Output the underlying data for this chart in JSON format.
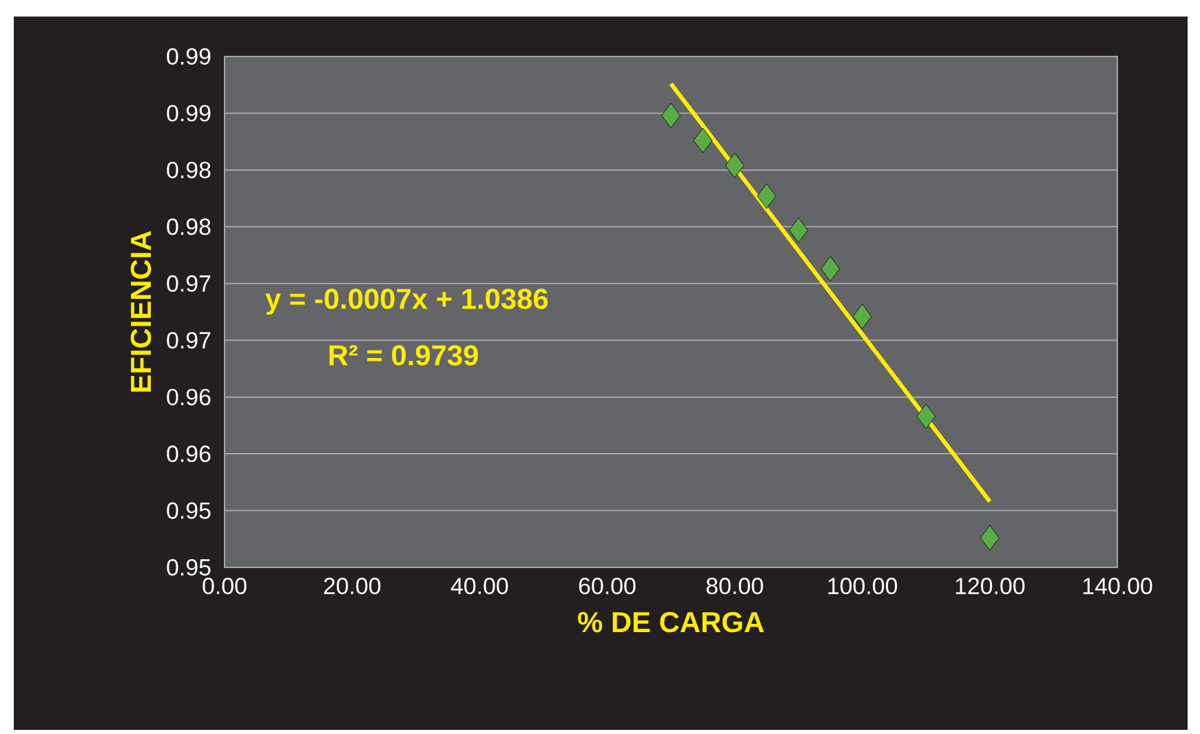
{
  "chart_data": {
    "type": "scatter",
    "xlabel": "% DE CARGA",
    "ylabel": "EFICIENCIA",
    "xlim": [
      0,
      140
    ],
    "ylim": [
      0.95,
      0.995
    ],
    "xticks": [
      {
        "value": 0,
        "label": "0.00"
      },
      {
        "value": 20,
        "label": "20.00"
      },
      {
        "value": 40,
        "label": "40.00"
      },
      {
        "value": 60,
        "label": "60.00"
      },
      {
        "value": 80,
        "label": "80.00"
      },
      {
        "value": 100,
        "label": "100.00"
      },
      {
        "value": 120,
        "label": "120.00"
      },
      {
        "value": 140,
        "label": "140.00"
      }
    ],
    "yticks": [
      {
        "value": 0.95,
        "label": "0.95"
      },
      {
        "value": 0.955,
        "label": "0.95"
      },
      {
        "value": 0.96,
        "label": "0.96"
      },
      {
        "value": 0.965,
        "label": "0.96"
      },
      {
        "value": 0.97,
        "label": "0.97"
      },
      {
        "value": 0.975,
        "label": "0.97"
      },
      {
        "value": 0.98,
        "label": "0.98"
      },
      {
        "value": 0.985,
        "label": "0.98"
      },
      {
        "value": 0.99,
        "label": "0.99"
      },
      {
        "value": 0.995,
        "label": "0.99"
      }
    ],
    "grid": "y",
    "series": [
      {
        "marker": "diamond",
        "color": "#5aac44",
        "x": [
          70,
          75,
          80,
          85,
          90,
          95,
          100,
          110,
          120
        ],
        "values": [
          0.9898,
          0.9876,
          0.9854,
          0.9827,
          0.9797,
          0.9763,
          0.9721,
          0.9633,
          0.9526
        ]
      },
      {
        "type": "line",
        "color": "#ffec00",
        "x": [
          70,
          120
        ],
        "values": [
          0.9926,
          0.9558
        ]
      }
    ],
    "annotations": [
      "y = -0.0007x + 1.0386",
      "R² = 0.9739"
    ]
  }
}
